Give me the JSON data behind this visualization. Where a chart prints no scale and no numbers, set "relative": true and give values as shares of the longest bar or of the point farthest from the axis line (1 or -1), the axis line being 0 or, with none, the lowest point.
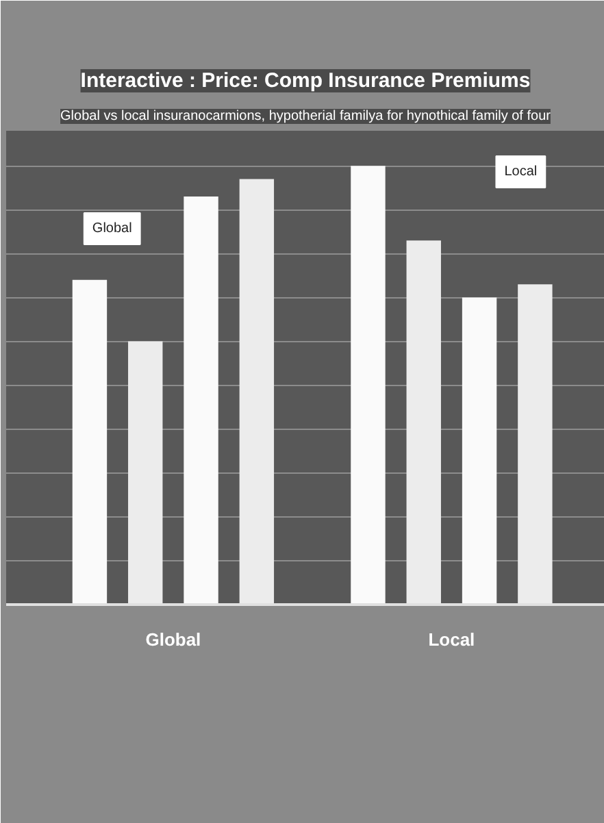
{
  "chart_data": {
    "type": "bar",
    "title": "Interactive : Price: Comp Insurance Premiums",
    "subtitle": "Global vs local insuranocarmions, hypotherial familya for hynothical family of four",
    "relative": true,
    "categories": [
      "Global",
      "Local"
    ],
    "series": [
      {
        "color": "#fafafa",
        "values": [
          0.74,
          1.0
        ]
      },
      {
        "color": "#ececec",
        "values": [
          0.6,
          0.83
        ]
      },
      {
        "color": "#fafafa",
        "values": [
          0.93,
          0.7
        ]
      },
      {
        "color": "#ececec",
        "values": [
          0.97,
          0.73
        ]
      }
    ],
    "annotations": [
      "Global",
      "Local"
    ],
    "grid": "y"
  }
}
